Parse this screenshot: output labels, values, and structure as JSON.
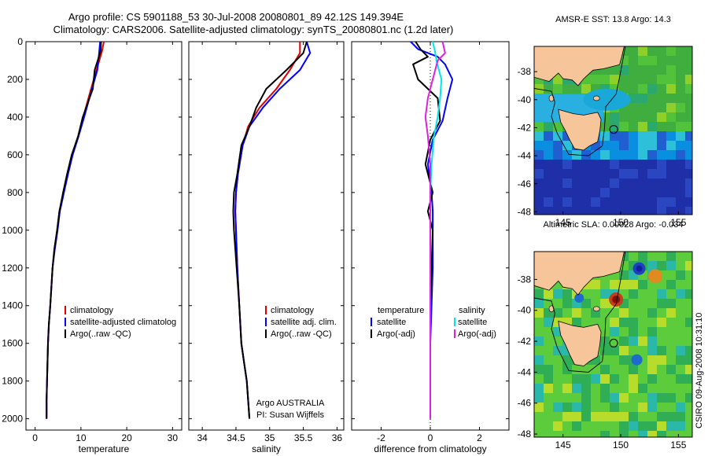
{
  "header": {
    "line1": "Argo profile: CS 5901188_53 30-Jul-2008 20080801_89 42.12S 149.394E",
    "line2": "Climatology: CARS2006. Satellite-adjusted climatology: synTS_20080801.nc (1.2d later)"
  },
  "footer": {
    "argo": "Argo AUSTRALIA",
    "pi": "PI: Susan Wijffels",
    "stamp": "CSIRO 09-Aug-2008 10:31:10"
  },
  "colors": {
    "climatology": "#e00000",
    "satellite": "#0000ff",
    "argo": "#000000",
    "cyan": "#00e5ee",
    "magenta": "#e020e0"
  },
  "chart_data": [
    {
      "type": "line",
      "xlabel": "temperature",
      "xticks": [
        0,
        10,
        20,
        30
      ],
      "xlim": [
        -2,
        32
      ],
      "yticks": [
        0,
        200,
        400,
        600,
        800,
        1000,
        1200,
        1400,
        1600,
        1800,
        2000
      ],
      "ylim": [
        2060,
        0
      ],
      "legend": [
        "climatology",
        "satellite-adjusted climatolog",
        "Argo(..raw -QC)"
      ],
      "series": [
        {
          "name": "climatology",
          "color": "#e00000",
          "x": [
            15.0,
            14.6,
            13.4,
            12.2,
            10.5,
            9.4,
            8.1,
            7.1,
            6.2,
            5.3,
            4.8,
            4.2,
            3.8,
            3.3,
            3.0,
            2.8,
            2.7,
            2.6,
            2.5,
            2.5
          ],
          "y": [
            0,
            50,
            150,
            250,
            400,
            500,
            600,
            700,
            800,
            900,
            1000,
            1100,
            1200,
            1400,
            1500,
            1600,
            1700,
            1800,
            1900,
            2000
          ]
        },
        {
          "name": "satellite-adjusted climatology",
          "color": "#0000ff",
          "x": [
            14.2,
            14.0,
            13.6,
            12.4,
            10.7,
            9.5,
            8.2,
            7.2,
            6.3,
            5.4,
            4.9,
            4.3,
            3.8,
            3.3,
            3.0,
            2.8,
            2.7,
            2.6,
            2.5,
            2.5
          ],
          "y": [
            0,
            50,
            150,
            250,
            400,
            500,
            600,
            700,
            800,
            900,
            1000,
            1100,
            1200,
            1400,
            1500,
            1600,
            1700,
            1800,
            1900,
            2000
          ]
        },
        {
          "name": "Argo(..raw -QC)",
          "color": "#000000",
          "x": [
            14.4,
            14.3,
            13.0,
            12.6,
            10.4,
            9.4,
            8.0,
            7.0,
            6.1,
            5.3,
            4.8,
            4.2,
            3.8,
            3.3,
            3.0,
            2.8,
            2.7,
            2.6,
            2.5,
            2.5
          ],
          "y": [
            0,
            50,
            150,
            250,
            400,
            500,
            600,
            700,
            800,
            900,
            1000,
            1100,
            1200,
            1400,
            1500,
            1600,
            1700,
            1800,
            1900,
            2000
          ]
        }
      ]
    },
    {
      "type": "line",
      "xlabel": "salinity",
      "xticks": [
        34,
        34.5,
        35,
        35.5,
        36
      ],
      "xlim": [
        33.8,
        36.1
      ],
      "ylim": [
        2060,
        0
      ],
      "legend": [
        "climatology",
        "satellite adj. clim.",
        "Argo(..raw -QC)"
      ],
      "series": [
        {
          "name": "climatology",
          "color": "#e00000",
          "x": [
            35.45,
            35.45,
            35.3,
            35.1,
            34.85,
            34.68,
            34.6,
            34.53,
            34.5,
            34.49,
            34.5,
            34.52,
            34.55,
            34.58,
            34.62,
            34.66,
            34.68,
            34.7
          ],
          "y": [
            0,
            60,
            150,
            250,
            350,
            450,
            550,
            700,
            800,
            900,
            1000,
            1200,
            1400,
            1600,
            1700,
            1800,
            1900,
            2000
          ]
        },
        {
          "name": "satellite adj. clim.",
          "color": "#0000ff",
          "x": [
            35.55,
            35.6,
            35.45,
            35.15,
            34.9,
            34.7,
            34.6,
            34.53,
            34.5,
            34.49,
            34.5,
            34.52,
            34.55,
            34.58,
            34.62,
            34.66,
            34.68,
            34.7
          ],
          "y": [
            0,
            60,
            150,
            250,
            350,
            450,
            550,
            700,
            800,
            900,
            1000,
            1200,
            1400,
            1600,
            1700,
            1800,
            1900,
            2000
          ]
        },
        {
          "name": "Argo(..raw -QC)",
          "color": "#000000",
          "x": [
            35.55,
            35.5,
            35.25,
            34.95,
            34.8,
            34.7,
            34.58,
            34.52,
            34.47,
            34.46,
            34.47,
            34.51,
            34.55,
            34.58,
            34.62,
            34.66,
            34.68,
            34.7
          ],
          "y": [
            0,
            60,
            150,
            250,
            350,
            450,
            550,
            700,
            800,
            900,
            1000,
            1200,
            1400,
            1600,
            1700,
            1800,
            1900,
            2000
          ]
        }
      ]
    },
    {
      "type": "line",
      "xlabel": "difference from climatology",
      "xticks": [
        -2,
        0,
        2
      ],
      "xlim": [
        -3.2,
        3.2
      ],
      "ylim": [
        2060,
        0
      ],
      "legend_left_title": "temperature",
      "legend_right_title": "salinity",
      "legend_left": [
        "satellite",
        "Argo(-adj)"
      ],
      "legend_right": [
        "satellite",
        "Argo(-adj)"
      ],
      "series": [
        {
          "name": "temperature satellite",
          "color": "#0000ff",
          "x": [
            -0.8,
            -0.5,
            0.3,
            0.6,
            0.9,
            0.7,
            0.5,
            0.1,
            -0.1,
            0.05,
            0.1,
            0.1,
            0.1,
            0.05,
            0.0,
            0.0,
            0.0
          ],
          "y": [
            0,
            40,
            80,
            120,
            200,
            300,
            420,
            520,
            650,
            800,
            900,
            1000,
            1200,
            1400,
            1600,
            1800,
            2000
          ]
        },
        {
          "name": "temperature Argo(-adj)",
          "color": "#000000",
          "x": [
            -0.6,
            -0.4,
            -0.1,
            -0.7,
            -0.5,
            0.3,
            0.4,
            0.0,
            -0.2,
            0.1,
            -0.1,
            0.1,
            0.05,
            0.0,
            0.0,
            0.0,
            0.0
          ],
          "y": [
            0,
            40,
            80,
            120,
            200,
            300,
            420,
            520,
            650,
            800,
            900,
            1000,
            1200,
            1400,
            1600,
            1800,
            2000
          ]
        },
        {
          "name": "salinity satellite",
          "color": "#00e5ee",
          "x": [
            0.1,
            0.2,
            0.25,
            0.45,
            0.4,
            0.3,
            0.15,
            0.05,
            0.0,
            0.0,
            0.0,
            0.0,
            0.0
          ],
          "y": [
            0,
            60,
            100,
            200,
            300,
            400,
            500,
            650,
            800,
            1000,
            1400,
            1800,
            2000
          ]
        },
        {
          "name": "salinity Argo(-adj)",
          "color": "#e020e0",
          "x": [
            0.5,
            0.6,
            0.3,
            0.1,
            -0.1,
            -0.2,
            -0.1,
            0.0,
            0.0,
            0.0,
            0.0,
            0.0,
            0.0
          ],
          "y": [
            0,
            60,
            100,
            200,
            300,
            400,
            500,
            650,
            800,
            1000,
            1400,
            1800,
            2000
          ]
        }
      ]
    },
    {
      "type": "heatmap",
      "title": "AMSR-E SST: 13.8 Argo: 14.3",
      "xticks": [
        145,
        150,
        155
      ],
      "yticks": [
        -38,
        -40,
        -42,
        -44,
        -46,
        -48
      ],
      "xlim": [
        142.5,
        156.2
      ],
      "ylim": [
        -48.2,
        -36.2
      ],
      "float": {
        "lon": 149.394,
        "lat": -42.12
      }
    },
    {
      "type": "heatmap",
      "title": "Altimetric SLA: 0.00028 Argo: -0.034",
      "xticks": [
        145,
        150,
        155
      ],
      "yticks": [
        -38,
        -40,
        -42,
        -44,
        -46,
        -48
      ],
      "xlim": [
        142.5,
        156.2
      ],
      "ylim": [
        -48.2,
        -36.2
      ],
      "float": {
        "lon": 149.394,
        "lat": -42.12
      }
    }
  ]
}
